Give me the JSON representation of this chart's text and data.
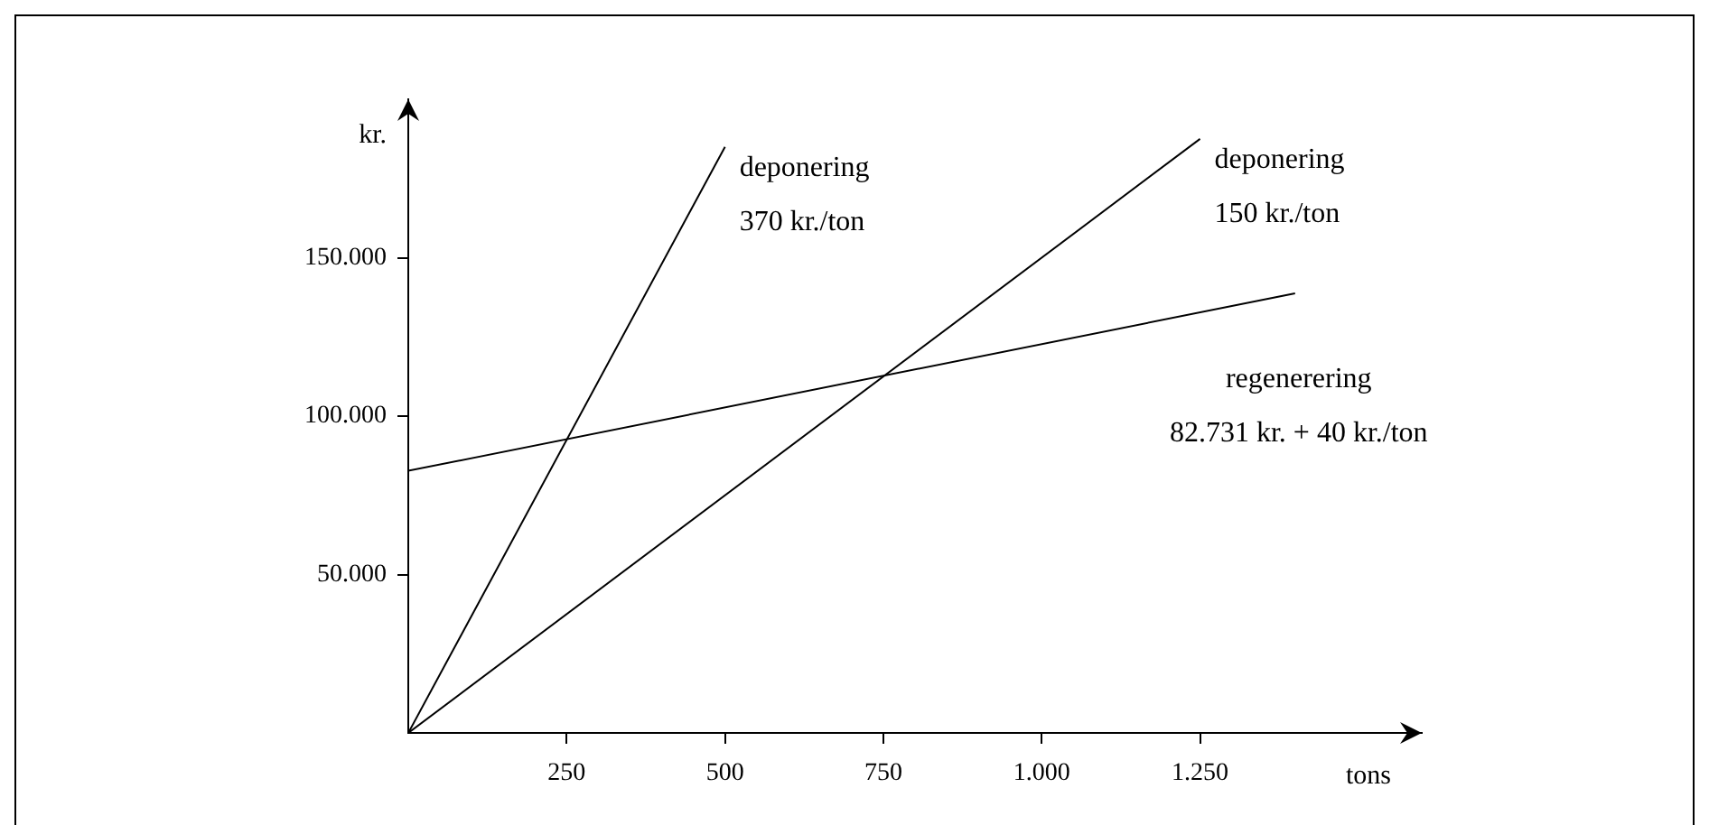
{
  "chart_data": {
    "type": "line",
    "xlabel": "tons",
    "ylabel": "kr.",
    "xlim": [
      0,
      1600
    ],
    "ylim": [
      0,
      200000
    ],
    "xticks": [
      250,
      500,
      750,
      {
        "value": 1000,
        "label": "1.000"
      },
      {
        "value": 1250,
        "label": "1.250"
      }
    ],
    "yticks": [
      {
        "value": 50000,
        "label": "50.000"
      },
      {
        "value": 100000,
        "label": "100.000"
      },
      {
        "value": 150000,
        "label": "150.000"
      }
    ],
    "grid": false,
    "legend": false,
    "marker": "none",
    "line_style": "solid",
    "series": [
      {
        "name": "deponering 370 kr./ton",
        "color": "#000000",
        "x": [
          0,
          500
        ],
        "values": [
          0,
          185000
        ]
      },
      {
        "name": "deponering 150 kr./ton",
        "color": "#000000",
        "x": [
          0,
          1250
        ],
        "values": [
          0,
          187500
        ]
      },
      {
        "name": "regenerering 82.731 kr. + 40 kr./ton",
        "color": "#000000",
        "x": [
          0,
          1400
        ],
        "values": [
          82731,
          138731
        ]
      }
    ]
  }
}
